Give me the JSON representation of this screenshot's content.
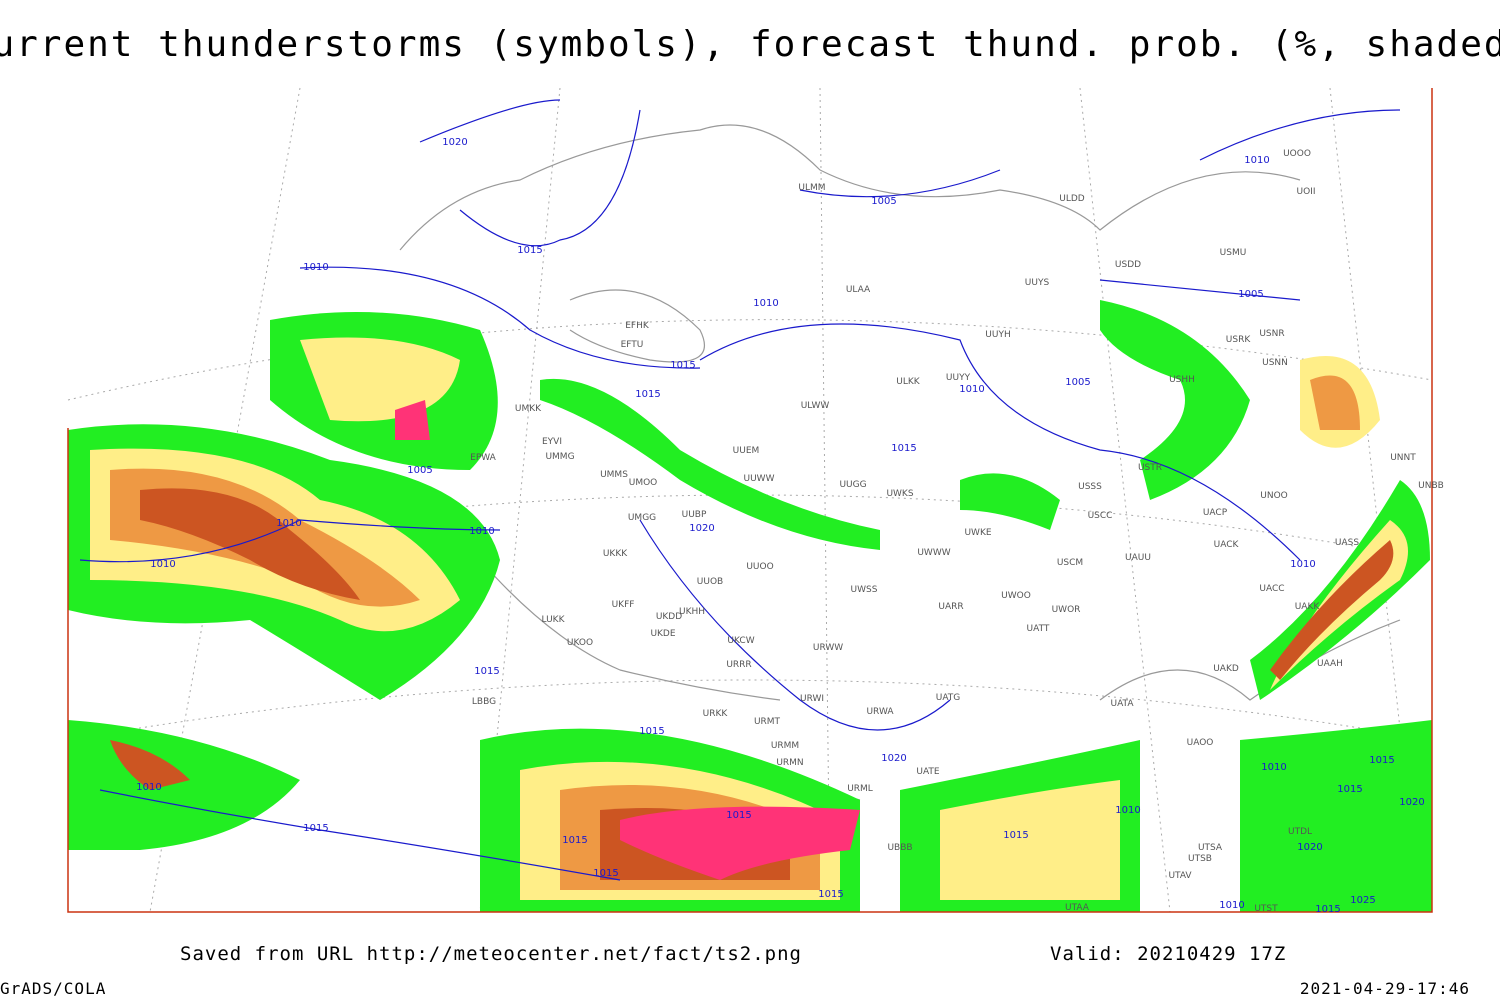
{
  "header": {
    "title": "Current thunderstorms (symbols), forecast thund. prob. (%, shaded)"
  },
  "map": {
    "stations": [
      "ULMM",
      "ULDD",
      "UOOO",
      "UOII",
      "USMU",
      "USDD",
      "UUYS",
      "ULAA",
      "UUYH",
      "EFHK",
      "EFTU",
      "UUYY",
      "ULKK",
      "ULWW",
      "UMKK",
      "EYVI",
      "UMMG",
      "UUEM",
      "EPWA",
      "UMMS",
      "UMOO",
      "UUWW",
      "UUGG",
      "UWKS",
      "UMGG",
      "UUBP",
      "UWKE",
      "UWWW",
      "UKKK",
      "UUOO",
      "UUOB",
      "UWSS",
      "UARR",
      "UKHH",
      "UKDD",
      "UKFF",
      "LUKK",
      "UKOO",
      "UKDE",
      "UKCW",
      "URWW",
      "UATT",
      "UWOO",
      "UWOR",
      "URRR",
      "LBBG",
      "URWI",
      "UATG",
      "URWA",
      "URKK",
      "URMT",
      "URMM",
      "URMN",
      "UATE",
      "URML",
      "UBBB",
      "UATA",
      "UAOO",
      "UAKD",
      "UAAH",
      "UAKK",
      "UACC",
      "UACK",
      "UASS",
      "UAUU",
      "USCM",
      "USCC",
      "UACP",
      "USSS",
      "USTR",
      "UNOO",
      "UNNT",
      "UNBB",
      "USHH",
      "USNN",
      "USRK",
      "USNR",
      "UTSA",
      "UTSB",
      "UTAV",
      "UTST",
      "UTDL",
      "UTAA"
    ],
    "isobars": [
      1020,
      1015,
      1010,
      1005,
      1010,
      1010,
      1015,
      1015,
      1005,
      1005,
      1010,
      1015,
      1005,
      1010,
      1010,
      1020,
      1010,
      1010,
      1015,
      1015,
      1020,
      1010,
      1015,
      1015,
      1015,
      1015,
      1015,
      1010,
      1015,
      1010,
      1015,
      1015,
      1020,
      1020,
      1010,
      1025,
      1015
    ]
  },
  "footer": {
    "source": "Saved from URL http://meteocenter.net/fact/ts2.png",
    "valid": "Valid: 20210429 17Z",
    "software": "GrADS/COLA",
    "timestamp": "2021-04-29-17:46"
  }
}
